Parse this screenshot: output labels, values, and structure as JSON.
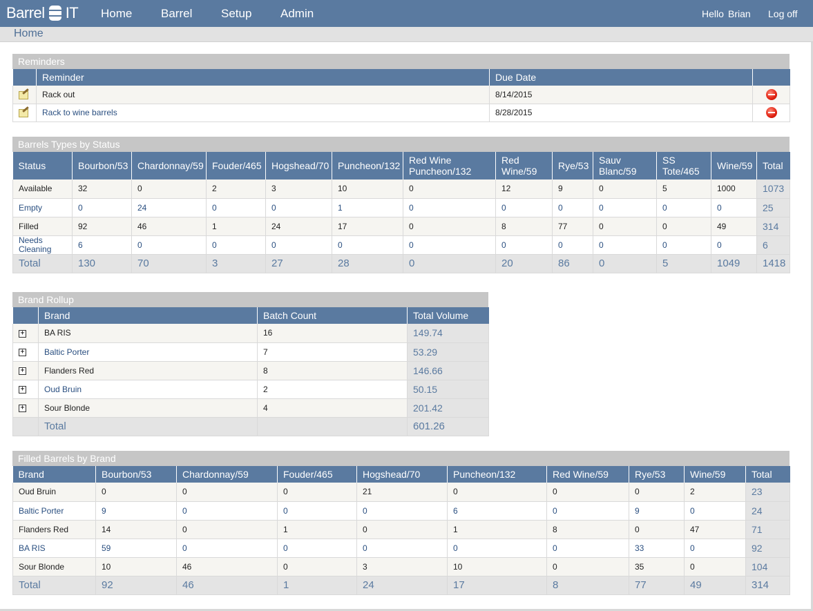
{
  "app": {
    "logo_text_left": "Barrel",
    "logo_text_right": "IT",
    "nav": [
      "Home",
      "Barrel",
      "Setup",
      "Admin"
    ],
    "greeting_hello": "Hello",
    "greeting_user": "Brian",
    "logoff": "Log off",
    "breadcrumb": "Home"
  },
  "reminders": {
    "title": "Reminders",
    "headers": [
      "",
      "Reminder",
      "Due Date",
      ""
    ],
    "rows": [
      {
        "reminder": "Rack out",
        "due": "8/14/2015",
        "link": false
      },
      {
        "reminder": "Rack to wine barrels",
        "due": "8/28/2015",
        "link": true
      }
    ]
  },
  "barrel_types": {
    "title": "Barrels Types by Status",
    "headers": [
      "Status",
      "Bourbon/53",
      "Chardonnay/59",
      "Fouder/465",
      "Hogshead/70",
      "Puncheon/132",
      "Red Wine Puncheon/132",
      "Red Wine/59",
      "Rye/53",
      "Sauv Blanc/59",
      "SS Tote/465",
      "Wine/59",
      "Total"
    ],
    "rows": [
      {
        "status": "Available",
        "link": false,
        "values": [
          "32",
          "0",
          "2",
          "3",
          "10",
          "0",
          "12",
          "9",
          "0",
          "5",
          "1000"
        ],
        "total": "1073"
      },
      {
        "status": "Empty",
        "link": true,
        "values": [
          "0",
          "24",
          "0",
          "0",
          "1",
          "0",
          "0",
          "0",
          "0",
          "0",
          "0"
        ],
        "total": "25"
      },
      {
        "status": "Filled",
        "link": false,
        "values": [
          "92",
          "46",
          "1",
          "24",
          "17",
          "0",
          "8",
          "77",
          "0",
          "0",
          "49"
        ],
        "total": "314"
      },
      {
        "status": "Needs Cleaning",
        "link": true,
        "values": [
          "6",
          "0",
          "0",
          "0",
          "0",
          "0",
          "0",
          "0",
          "0",
          "0",
          "0"
        ],
        "total": "6"
      }
    ],
    "total_row": {
      "label": "Total",
      "values": [
        "130",
        "70",
        "3",
        "27",
        "28",
        "0",
        "20",
        "86",
        "0",
        "5",
        "1049"
      ],
      "total": "1418"
    }
  },
  "brand_rollup": {
    "title": "Brand Rollup",
    "headers": [
      "",
      "Brand",
      "Batch Count",
      "Total Volume"
    ],
    "rows": [
      {
        "brand": "BA RIS",
        "link": false,
        "batch": "16",
        "volume": "149.74"
      },
      {
        "brand": "Baltic Porter",
        "link": true,
        "batch": "7",
        "volume": "53.29"
      },
      {
        "brand": "Flanders Red",
        "link": false,
        "batch": "8",
        "volume": "146.66"
      },
      {
        "brand": "Oud Bruin",
        "link": true,
        "batch": "2",
        "volume": "50.15"
      },
      {
        "brand": "Sour Blonde",
        "link": false,
        "batch": "4",
        "volume": "201.42"
      }
    ],
    "total_row": {
      "label": "Total",
      "volume": "601.26"
    }
  },
  "filled_by_brand": {
    "title": "Filled Barrels by Brand",
    "headers": [
      "Brand",
      "Bourbon/53",
      "Chardonnay/59",
      "Fouder/465",
      "Hogshead/70",
      "Puncheon/132",
      "Red Wine/59",
      "Rye/53",
      "Wine/59",
      "Total"
    ],
    "rows": [
      {
        "brand": "Oud Bruin",
        "link": false,
        "values": [
          "0",
          "0",
          "0",
          "21",
          "0",
          "0",
          "0",
          "2"
        ],
        "total": "23"
      },
      {
        "brand": "Baltic Porter",
        "link": true,
        "values": [
          "9",
          "0",
          "0",
          "0",
          "6",
          "0",
          "9",
          "0"
        ],
        "total": "24"
      },
      {
        "brand": "Flanders Red",
        "link": false,
        "values": [
          "14",
          "0",
          "1",
          "0",
          "1",
          "8",
          "0",
          "47"
        ],
        "total": "71"
      },
      {
        "brand": "BA RIS",
        "link": true,
        "values": [
          "59",
          "0",
          "0",
          "0",
          "0",
          "0",
          "33",
          "0"
        ],
        "total": "92"
      },
      {
        "brand": "Sour Blonde",
        "link": false,
        "values": [
          "10",
          "46",
          "0",
          "3",
          "10",
          "0",
          "35",
          "0"
        ],
        "total": "104"
      }
    ],
    "total_row": {
      "label": "Total",
      "values": [
        "92",
        "46",
        "1",
        "24",
        "17",
        "8",
        "77",
        "49"
      ],
      "total": "314"
    }
  }
}
